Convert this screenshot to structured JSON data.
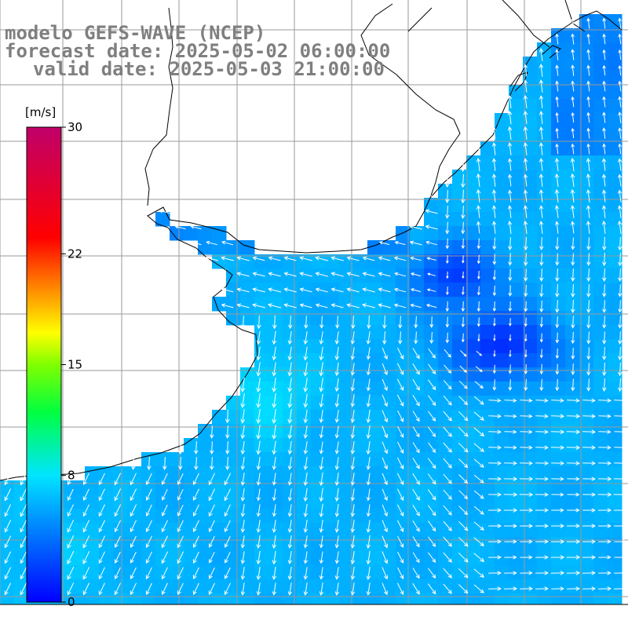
{
  "title": {
    "line1": "modelo GEFS-WAVE (NCEP)",
    "line2": "forecast date: 2025-05-02 06:00:00",
    "line3": "valid date: 2025-05-03 21:00:00"
  },
  "colorbar": {
    "unit_label": "[m/s]",
    "min": 0,
    "max": 30,
    "ticks": [
      {
        "value": 30,
        "label": "30"
      },
      {
        "value": 22,
        "label": "22"
      },
      {
        "value": 15,
        "label": "15"
      },
      {
        "value": 8,
        "label": "8"
      },
      {
        "value": 0,
        "label": "0"
      }
    ],
    "colors": {
      "v0": "#0000ff",
      "v4": "#0070ff",
      "v8": "#00e5ff",
      "v12": "#00ff40",
      "v15": "#80ff00",
      "v17": "#ffff00",
      "v20": "#ff8000",
      "v23": "#ff0000",
      "v30": "#c0006a"
    }
  },
  "map": {
    "type": "wind-vector-field",
    "grid_lines": true,
    "land_color": "#ffffff",
    "coast_color": "#000000",
    "grid_color": "#9a9a9a",
    "arrow_color": "#ffffff"
  }
}
